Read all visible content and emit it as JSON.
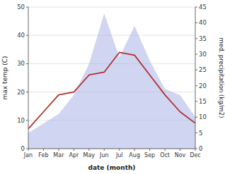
{
  "chart_data": {
    "type": "line",
    "categories": [
      "Jan",
      "Feb",
      "Mar",
      "Apr",
      "May",
      "Jun",
      "Jul",
      "Aug",
      "Sep",
      "Oct",
      "Nov",
      "Dec"
    ],
    "xlabel": "date (month)",
    "ylabel": "max temp (C)",
    "y2label": "med. precipitation (kg/m2)",
    "series": [
      {
        "type": "area",
        "axis": "y2",
        "color": "#aab4e8",
        "values": [
          5,
          8,
          11,
          17,
          27,
          43,
          29,
          39,
          28,
          19,
          17,
          10
        ]
      },
      {
        "type": "line",
        "color": "#b03030",
        "values": [
          7,
          13,
          19,
          20,
          26,
          27,
          34,
          33,
          26,
          19,
          13,
          9
        ]
      }
    ],
    "ylim": [
      0,
      50
    ],
    "yticks": [
      0,
      10,
      20,
      30,
      40,
      50
    ],
    "y2lim": [
      0,
      45
    ],
    "y2ticks": [
      0,
      5,
      10,
      15,
      20,
      25,
      30,
      35,
      40,
      45
    ],
    "grid": true
  }
}
